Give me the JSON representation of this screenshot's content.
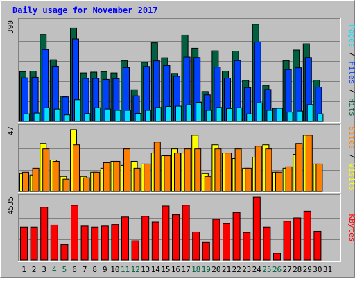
{
  "title": "Daily usage for November 2017",
  "colors": {
    "background": "#c0c0c0",
    "border_dark": "#808080",
    "border_light": "#ffffff",
    "title": "#0000ff",
    "hits": "#006040",
    "files": "#0040ff",
    "pages": "#00e0ff",
    "visits": "#ffff00",
    "sites": "#ff8000",
    "kbytes": "#ff0000",
    "weekend_day_label": "#006040",
    "weekday_label": "#000000",
    "gridline": "#808080"
  },
  "chart_data": {
    "type": "bar",
    "days": [
      "1",
      "2",
      "3",
      "4",
      "5",
      "6",
      "7",
      "8",
      "9",
      "10",
      "11",
      "12",
      "13",
      "14",
      "15",
      "16",
      "17",
      "18",
      "19",
      "20",
      "21",
      "22",
      "23",
      "24",
      "25",
      "26",
      "27",
      "28",
      "29",
      "30",
      "31"
    ],
    "weekend_days": [
      "4",
      "5",
      "11",
      "12",
      "18",
      "19",
      "25",
      "26"
    ],
    "panels": [
      {
        "id": "hits-files-pages",
        "ymax_label": "390",
        "ymax": 390,
        "legend": [
          {
            "text": "Pages",
            "color_key": "pages"
          },
          {
            "text": "Files",
            "color_key": "files"
          },
          {
            "text": "Hits",
            "color_key": "hits"
          }
        ],
        "series": [
          {
            "name": "Hits",
            "color_key": "hits",
            "values": [
              193,
              195,
              337,
              239,
              98,
              362,
              188,
              191,
              193,
              188,
              235,
              123,
              229,
              305,
              247,
              186,
              335,
              284,
              116,
              274,
              195,
              273,
              159,
              377,
              140,
              51,
              236,
              277,
              301,
              160,
              null
            ]
          },
          {
            "name": "Files",
            "color_key": "files",
            "values": [
              169,
              171,
              279,
              214,
              95,
              320,
              167,
              167,
              163,
              166,
              209,
              99,
              213,
              235,
              217,
              175,
              250,
              248,
              103,
              211,
              168,
              236,
              131,
              308,
              124,
              51,
              201,
              208,
              248,
              133,
              null
            ]
          },
          {
            "name": "Pages",
            "color_key": "pages",
            "values": [
              29,
              32,
              53,
              48,
              25,
              84,
              30,
              53,
              48,
              43,
              43,
              31,
              43,
              54,
              58,
              59,
              64,
              74,
              43,
              54,
              50,
              53,
              29,
              72,
              43,
              51,
              36,
              40,
              65,
              29,
              null
            ]
          }
        ]
      },
      {
        "id": "visits-sites",
        "ymax_label": "47",
        "ymax": 47,
        "legend": [
          {
            "text": "Sites",
            "color_key": "sites"
          },
          {
            "text": "Visits",
            "color_key": "visits"
          }
        ],
        "series": [
          {
            "name": "Visits",
            "color_key": "visits",
            "values": [
              13,
              12,
              35,
              23,
              11,
              45,
              11,
              14,
              17,
              22,
              19,
              22,
              20,
              28,
              26,
              31,
              28,
              41,
              13,
              34,
              28,
              24,
              17,
              25,
              34,
              14,
              17,
              27,
              41,
              20,
              null
            ]
          },
          {
            "name": "Sites",
            "color_key": "sites",
            "values": [
              14,
              17,
              31,
              22,
              9,
              34,
              10,
              14,
              21,
              22,
              31,
              17,
              20,
              36,
              26,
              28,
              31,
              31,
              11,
              31,
              28,
              31,
              17,
              33,
              31,
              14,
              18,
              35,
              41,
              20,
              null
            ]
          }
        ]
      },
      {
        "id": "kbytes",
        "ymax_label": "4535",
        "ymax": 4535,
        "legend": [
          {
            "text": "KBytes",
            "color_key": "kbytes"
          }
        ],
        "series": [
          {
            "name": "KBytes",
            "color_key": "kbytes",
            "values": [
              2380,
              2380,
              3800,
              2520,
              1120,
              3940,
              2450,
              2380,
              2450,
              2560,
              3100,
              1390,
              3150,
              2740,
              3890,
              3260,
              3950,
              2020,
              1280,
              2940,
              2630,
              3420,
              1980,
              4530,
              2380,
              500,
              2800,
              3040,
              3520,
              2070,
              null
            ]
          }
        ]
      }
    ]
  }
}
